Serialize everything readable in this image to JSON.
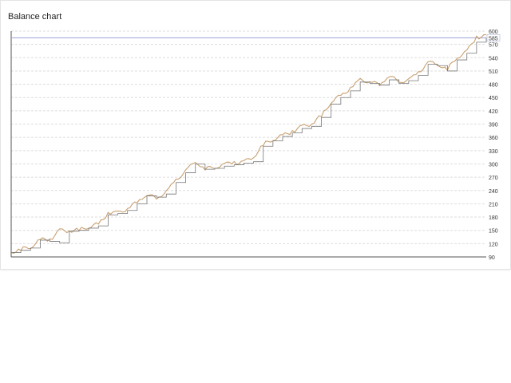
{
  "chart_data": {
    "type": "line",
    "title": "Balance chart",
    "ylim": [
      90,
      600
    ],
    "yticks": [
      90,
      120,
      150,
      180,
      210,
      240,
      270,
      300,
      330,
      360,
      390,
      420,
      450,
      480,
      510,
      540,
      570,
      600
    ],
    "grid": true,
    "current_value": 585,
    "series": [
      {
        "role": "equity",
        "color": "#c8a070",
        "values": [
          100,
          108,
          112,
          130,
          128,
          150,
          148,
          152,
          158,
          165,
          188,
          190,
          198,
          215,
          232,
          222,
          238,
          262,
          285,
          305,
          290,
          292,
          300,
          302,
          305,
          315,
          345,
          355,
          365,
          372,
          385,
          390,
          410,
          440,
          455,
          470,
          490,
          485,
          480,
          500,
          485,
          490,
          505,
          530,
          525,
          515,
          540,
          555,
          585,
          590
        ]
      },
      {
        "role": "balance",
        "color": "#777777",
        "values": [
          100,
          105,
          110,
          128,
          125,
          122,
          148,
          150,
          155,
          160,
          185,
          188,
          195,
          210,
          228,
          225,
          232,
          258,
          280,
          300,
          288,
          290,
          295,
          298,
          302,
          305,
          340,
          352,
          362,
          370,
          380,
          385,
          405,
          435,
          450,
          465,
          485,
          482,
          478,
          490,
          482,
          488,
          500,
          525,
          522,
          510,
          535,
          550,
          575,
          585
        ]
      }
    ]
  }
}
